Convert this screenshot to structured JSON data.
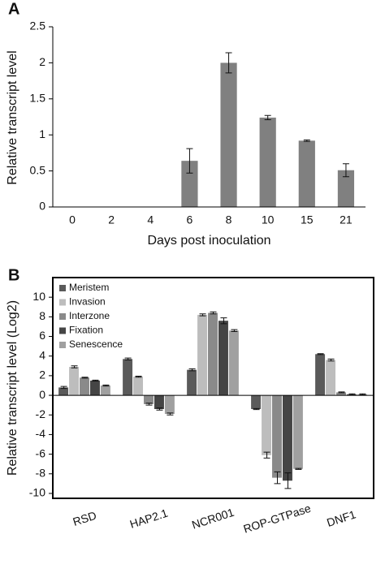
{
  "chart_data": [
    {
      "type": "bar",
      "panel_label": "A",
      "y_label": "Relative transcript level",
      "x_label": "Days post inoculation",
      "categories": [
        "0",
        "2",
        "4",
        "6",
        "8",
        "10",
        "15",
        "21"
      ],
      "series": [
        {
          "color": "#808080",
          "values": [
            0,
            0,
            0,
            0.64,
            2.0,
            1.24,
            0.92,
            0.51
          ],
          "errors": [
            0,
            0,
            0,
            0.17,
            0.14,
            0.03,
            0.01,
            0.09
          ]
        }
      ],
      "ylim": [
        0,
        2.5
      ],
      "yticks": [
        0,
        0.5,
        1,
        1.5,
        2,
        2.5
      ],
      "frame": false,
      "legend": "none"
    },
    {
      "type": "bar",
      "panel_label": "B",
      "y_label": "Relative transcript level (Log2)",
      "categories": [
        "RSD",
        "HAP2.1",
        "NCR001",
        "ROP-GTPase",
        "DNF1"
      ],
      "series": [
        {
          "name": "Meristem",
          "color": "#5a5a5a",
          "values": [
            0.8,
            3.7,
            2.6,
            -1.4,
            4.2
          ],
          "errors": [
            0.1,
            0.1,
            0.1,
            0.05,
            0.05
          ]
        },
        {
          "name": "Invasion",
          "color": "#bdbdbd",
          "values": [
            2.9,
            1.9,
            8.2,
            -6.1,
            3.6
          ],
          "errors": [
            0.1,
            0.05,
            0.1,
            0.3,
            0.1
          ]
        },
        {
          "name": "Interzone",
          "color": "#8a8a8a",
          "values": [
            1.8,
            -0.9,
            8.4,
            -8.4,
            0.3
          ],
          "errors": [
            0.05,
            0.1,
            0.1,
            0.6,
            0.05
          ]
        },
        {
          "name": "Fixation",
          "color": "#454545",
          "values": [
            1.5,
            -1.4,
            7.6,
            -8.7,
            0.1
          ],
          "errors": [
            0.05,
            0.1,
            0.3,
            0.8,
            0.05
          ]
        },
        {
          "name": "Senescence",
          "color": "#a0a0a0",
          "values": [
            1.0,
            -1.9,
            6.6,
            -7.5,
            0.1
          ],
          "errors": [
            0.05,
            0.1,
            0.1,
            0.05,
            0.05
          ]
        }
      ],
      "ylim": [
        -10.5,
        12
      ],
      "yticks": [
        -10,
        -8,
        -6,
        -4,
        -2,
        0,
        2,
        4,
        6,
        8,
        10
      ],
      "frame": true,
      "legend": "top-left"
    }
  ]
}
